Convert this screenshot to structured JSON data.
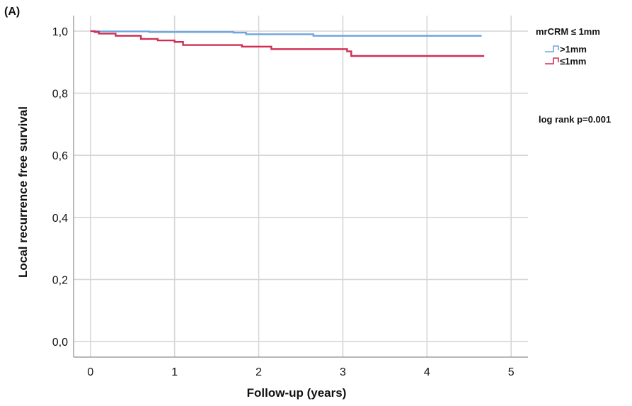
{
  "panel_label": "(A)",
  "chart_data": {
    "type": "line",
    "step": true,
    "title": "",
    "xlabel": "Follow-up (years)",
    "ylabel": "Local recurrence free survival",
    "xlim": [
      -0.2,
      5.2
    ],
    "ylim": [
      -0.05,
      1.05
    ],
    "xticks": [
      0,
      1,
      2,
      3,
      4,
      5
    ],
    "xtick_labels": [
      "0",
      "1",
      "2",
      "3",
      "4",
      "5"
    ],
    "yticks": [
      0.0,
      0.2,
      0.4,
      0.6,
      0.8,
      1.0
    ],
    "ytick_labels": [
      "0,0",
      "0,2",
      "0,4",
      "0,6",
      "0,8",
      "1,0"
    ],
    "grid": true,
    "legend": {
      "title": "mrCRM ≤ 1mm",
      "position": "top-right"
    },
    "annotation": "log rank p=0.001",
    "series": [
      {
        "name": ">1mm",
        "color": "#6fa6dd",
        "x": [
          0,
          0.1,
          0.7,
          1.7,
          1.85,
          2.65,
          4.65
        ],
        "y": [
          1.0,
          0.999,
          0.997,
          0.995,
          0.99,
          0.985,
          0.985
        ]
      },
      {
        "name": "≤1mm",
        "color": "#d12e53",
        "x": [
          0,
          0.05,
          0.1,
          0.3,
          0.6,
          0.8,
          1.0,
          1.1,
          1.8,
          2.15,
          3.05,
          3.1,
          4.68
        ],
        "y": [
          1.0,
          0.997,
          0.992,
          0.985,
          0.975,
          0.97,
          0.965,
          0.955,
          0.95,
          0.942,
          0.935,
          0.92,
          0.92
        ]
      }
    ]
  }
}
